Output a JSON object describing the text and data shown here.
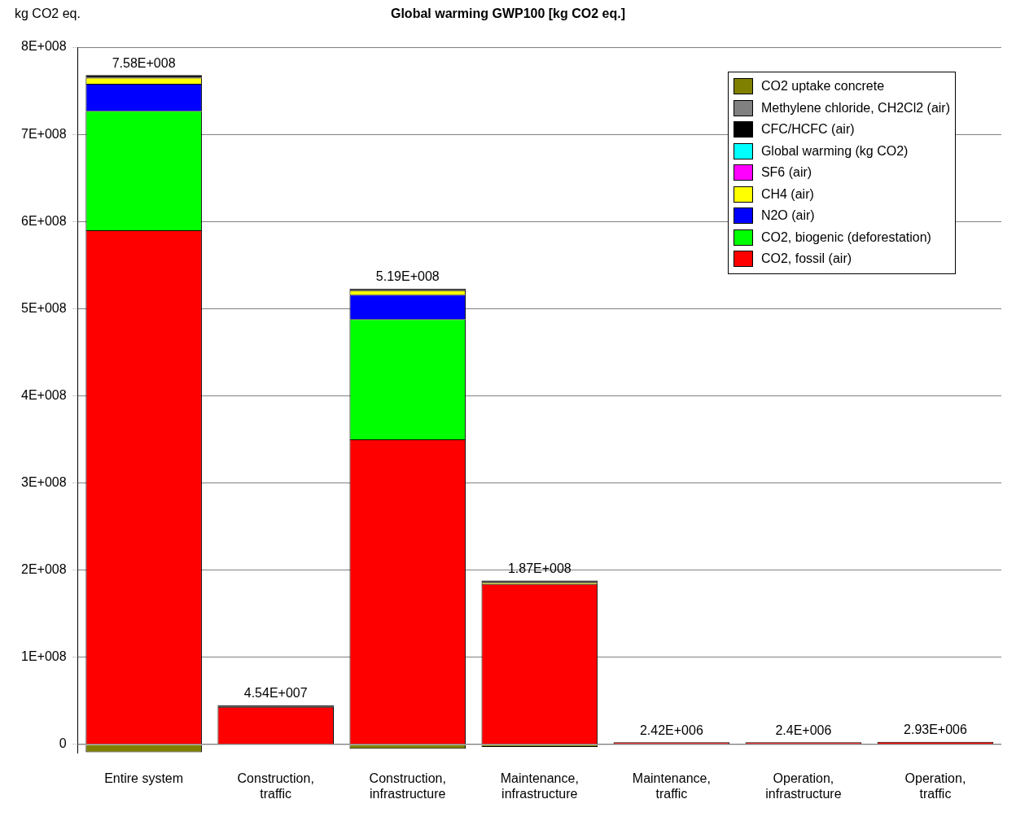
{
  "chart_data": {
    "type": "bar",
    "title": "Global warming GWP100 [kg CO2 eq.]",
    "ylabel": "kg CO2 eq.",
    "categories": [
      "Entire system",
      "Construction,\ntraffic",
      "Construction,\ninfrastructure",
      "Maintenance,\ninfrastructure",
      "Maintenance,\ntraffic",
      "Operation,\ninfrastructure",
      "Operation,\ntraffic"
    ],
    "stacked": true,
    "series": [
      {
        "name": "CO2, fossil (air)",
        "color": "#ff0000",
        "values": [
          590000000,
          43000000,
          350000000,
          184000000,
          2420000,
          2400000,
          2930000
        ]
      },
      {
        "name": "CO2, biogenic (deforestation)",
        "color": "#00ff00",
        "values": [
          137000000,
          null,
          138000000,
          null,
          null,
          null,
          null
        ]
      },
      {
        "name": "N2O (air)",
        "color": "#0000ff",
        "values": [
          31000000,
          null,
          28000000,
          null,
          null,
          null,
          null
        ]
      },
      {
        "name": "CH4 (air)",
        "color": "#ffff00",
        "values": [
          7000000,
          null,
          5000000,
          2000000,
          null,
          null,
          null
        ]
      },
      {
        "name": "SF6 (air)",
        "color": "#ff00ff",
        "values": [
          null,
          null,
          null,
          null,
          null,
          null,
          null
        ]
      },
      {
        "name": "Global warming (kg CO2)",
        "color": "#00ffff",
        "values": [
          null,
          null,
          null,
          null,
          null,
          null,
          null
        ]
      },
      {
        "name": "CFC/HCFC (air)",
        "color": "#000000",
        "values": [
          3000000,
          2000000,
          2000000,
          2000000,
          null,
          null,
          null
        ]
      },
      {
        "name": "Methylene chloride, CH2Cl2 (air)",
        "color": "#808080",
        "values": [
          null,
          null,
          null,
          null,
          null,
          null,
          null
        ]
      },
      {
        "name": "CO2 uptake concrete",
        "color": "#808000",
        "values": [
          -9000000,
          null,
          -5000000,
          -3000000,
          null,
          null,
          null
        ]
      }
    ],
    "totals": [
      "7.58E+008",
      "4.54E+007",
      "5.19E+008",
      "1.87E+008",
      "2.42E+006",
      "2.4E+006",
      "2.93E+006"
    ],
    "ylim": [
      -10000000,
      800000000
    ],
    "yticks": [
      0,
      {
        "value": 100000000,
        "label": "1E+008"
      },
      {
        "value": 200000000,
        "label": "2E+008"
      },
      {
        "value": 300000000,
        "label": "3E+008"
      },
      {
        "value": 400000000,
        "label": "4E+008"
      },
      {
        "value": 500000000,
        "label": "5E+008"
      },
      {
        "value": 600000000,
        "label": "6E+008"
      },
      {
        "value": 700000000,
        "label": "7E+008"
      },
      {
        "value": 800000000,
        "label": "8E+008"
      }
    ],
    "grid": "y",
    "legend": "top right"
  }
}
